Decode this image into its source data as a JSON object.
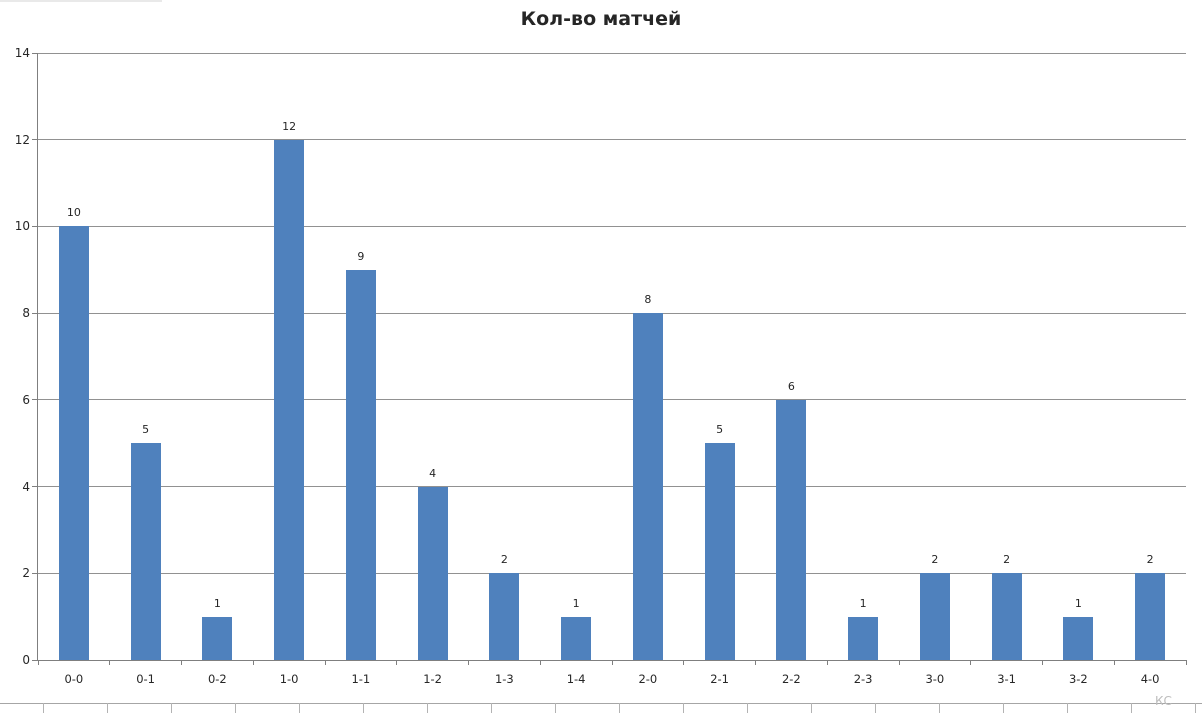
{
  "title": "Кол-во матчей",
  "colors": {
    "bar": "#4F81BD",
    "gridline": "#919191",
    "axis": "#7f7f7f",
    "text": "#262626",
    "sheet_line": "#a6a6a6",
    "sheet_text": "#bdbdbd"
  },
  "chart_data": {
    "type": "bar",
    "title": "Кол-во матчей",
    "categories": [
      "0-0",
      "0-1",
      "0-2",
      "1-0",
      "1-1",
      "1-2",
      "1-3",
      "1-4",
      "2-0",
      "2-1",
      "2-2",
      "2-3",
      "3-0",
      "3-1",
      "3-2",
      "4-0"
    ],
    "values": [
      10,
      5,
      1,
      12,
      9,
      4,
      2,
      1,
      8,
      5,
      6,
      1,
      2,
      2,
      1,
      2
    ],
    "xlabel": "",
    "ylabel": "",
    "ylim": [
      0,
      14
    ],
    "yticks": [
      0,
      2,
      4,
      6,
      8,
      10,
      12,
      14
    ],
    "grid": "horizontal-on",
    "legend": "none",
    "data_labels": true,
    "bar_color": "#4F81BD"
  },
  "sheet": {
    "cell_text_fragment": "КС"
  }
}
